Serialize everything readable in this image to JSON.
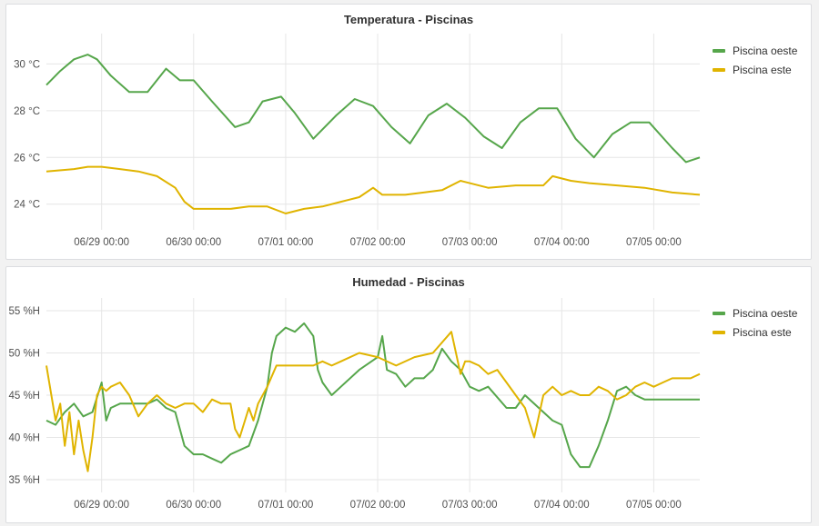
{
  "chart_data": [
    {
      "type": "line",
      "title": "Temperatura - Piscinas",
      "xlabel": "",
      "ylabel": "",
      "x_tick_labels": [
        "06/29 00:00",
        "06/30 00:00",
        "07/01 00:00",
        "07/02 00:00",
        "07/03 00:00",
        "07/04 00:00",
        "07/05 00:00"
      ],
      "y_tick_labels": [
        "24 °C",
        "26 °C",
        "28 °C",
        "30 °C"
      ],
      "y_ticks": [
        24,
        26,
        28,
        30
      ],
      "x_range": [
        -0.6,
        6.5
      ],
      "ylim": [
        22.9,
        31.3
      ],
      "grid": true,
      "legend_position": "top-right",
      "series": [
        {
          "name": "Piscina oeste",
          "color": "#56a64b",
          "x": [
            -0.6,
            -0.45,
            -0.3,
            -0.15,
            -0.05,
            0.1,
            0.3,
            0.5,
            0.7,
            0.85,
            1.0,
            1.2,
            1.45,
            1.6,
            1.75,
            1.95,
            2.1,
            2.3,
            2.55,
            2.75,
            2.95,
            3.15,
            3.35,
            3.55,
            3.75,
            3.95,
            4.15,
            4.35,
            4.55,
            4.75,
            4.95,
            5.15,
            5.35,
            5.55,
            5.75,
            5.95,
            6.2,
            6.35,
            6.5
          ],
          "y": [
            29.1,
            29.7,
            30.2,
            30.4,
            30.2,
            29.5,
            28.8,
            28.8,
            29.8,
            29.3,
            29.3,
            28.4,
            27.3,
            27.5,
            28.4,
            28.6,
            27.9,
            26.8,
            27.8,
            28.5,
            28.2,
            27.3,
            26.6,
            27.8,
            28.3,
            27.7,
            26.9,
            26.4,
            27.5,
            28.1,
            28.1,
            26.8,
            26.0,
            27.0,
            27.5,
            27.5,
            26.4,
            25.8,
            26.0
          ]
        },
        {
          "name": "Piscina este",
          "color": "#e0b400",
          "x": [
            -0.6,
            -0.3,
            -0.15,
            0.0,
            0.2,
            0.4,
            0.6,
            0.8,
            0.9,
            1.0,
            1.2,
            1.4,
            1.6,
            1.8,
            2.0,
            2.2,
            2.4,
            2.6,
            2.8,
            2.95,
            3.05,
            3.3,
            3.5,
            3.7,
            3.9,
            4.2,
            4.5,
            4.8,
            4.9,
            5.1,
            5.3,
            5.6,
            5.9,
            6.2,
            6.5
          ],
          "y": [
            25.4,
            25.5,
            25.6,
            25.6,
            25.5,
            25.4,
            25.2,
            24.7,
            24.1,
            23.8,
            23.8,
            23.8,
            23.9,
            23.9,
            23.6,
            23.8,
            23.9,
            24.1,
            24.3,
            24.7,
            24.4,
            24.4,
            24.5,
            24.6,
            25.0,
            24.7,
            24.8,
            24.8,
            25.2,
            25.0,
            24.9,
            24.8,
            24.7,
            24.5,
            24.4
          ]
        }
      ]
    },
    {
      "type": "line",
      "title": "Humedad - Piscinas",
      "xlabel": "",
      "ylabel": "",
      "x_tick_labels": [
        "06/29 00:00",
        "06/30 00:00",
        "07/01 00:00",
        "07/02 00:00",
        "07/03 00:00",
        "07/04 00:00",
        "07/05 00:00"
      ],
      "y_tick_labels": [
        "35 %H",
        "40 %H",
        "45 %H",
        "50 %H",
        "55 %H"
      ],
      "y_ticks": [
        35,
        40,
        45,
        50,
        55
      ],
      "x_range": [
        -0.6,
        6.5
      ],
      "ylim": [
        33.5,
        56.5
      ],
      "grid": true,
      "legend_position": "top-right",
      "series": [
        {
          "name": "Piscina oeste",
          "color": "#56a64b",
          "x": [
            -0.6,
            -0.5,
            -0.4,
            -0.3,
            -0.2,
            -0.1,
            0.0,
            0.05,
            0.1,
            0.2,
            0.35,
            0.5,
            0.6,
            0.7,
            0.8,
            0.9,
            1.0,
            1.1,
            1.2,
            1.3,
            1.4,
            1.5,
            1.6,
            1.7,
            1.8,
            1.85,
            1.9,
            2.0,
            2.1,
            2.2,
            2.3,
            2.35,
            2.4,
            2.5,
            2.6,
            2.8,
            3.0,
            3.05,
            3.1,
            3.2,
            3.3,
            3.4,
            3.5,
            3.6,
            3.7,
            3.8,
            3.9,
            4.0,
            4.1,
            4.2,
            4.4,
            4.5,
            4.6,
            4.8,
            4.9,
            5.0,
            5.1,
            5.2,
            5.3,
            5.4,
            5.5,
            5.6,
            5.7,
            5.8,
            5.9,
            6.0,
            6.1,
            6.2,
            6.3,
            6.4,
            6.5
          ],
          "y": [
            42,
            41.5,
            43,
            44,
            42.5,
            43,
            46.5,
            42,
            43.5,
            44,
            44,
            44,
            44.5,
            43.5,
            43,
            39,
            38,
            38,
            37.5,
            37,
            38,
            38.5,
            39,
            42,
            46,
            50,
            52,
            53,
            52.5,
            53.5,
            52,
            48,
            46.5,
            45,
            46,
            48,
            49.5,
            52,
            48,
            47.5,
            46,
            47,
            47,
            48,
            50.5,
            49,
            48,
            46,
            45.5,
            46,
            43.5,
            43.5,
            45,
            43,
            42,
            41.5,
            38,
            36.5,
            36.5,
            39,
            42,
            45.5,
            46,
            45,
            44.5,
            44.5,
            44.5,
            44.5,
            44.5,
            44.5,
            44.5
          ]
        },
        {
          "name": "Piscina este",
          "color": "#e0b400",
          "x": [
            -0.6,
            -0.5,
            -0.45,
            -0.4,
            -0.35,
            -0.3,
            -0.25,
            -0.2,
            -0.15,
            -0.1,
            -0.05,
            0.0,
            0.05,
            0.1,
            0.2,
            0.3,
            0.4,
            0.5,
            0.6,
            0.7,
            0.8,
            0.9,
            1.0,
            1.1,
            1.2,
            1.3,
            1.4,
            1.45,
            1.5,
            1.6,
            1.65,
            1.7,
            1.8,
            1.9,
            2.0,
            2.1,
            2.2,
            2.3,
            2.4,
            2.5,
            2.6,
            2.8,
            3.0,
            3.2,
            3.4,
            3.6,
            3.8,
            3.9,
            3.95,
            4.0,
            4.1,
            4.2,
            4.3,
            4.4,
            4.5,
            4.6,
            4.7,
            4.8,
            4.9,
            5.0,
            5.1,
            5.2,
            5.3,
            5.4,
            5.5,
            5.6,
            5.7,
            5.8,
            5.9,
            6.0,
            6.1,
            6.2,
            6.3,
            6.4,
            6.5
          ],
          "y": [
            48.5,
            42,
            44,
            39,
            43,
            38,
            42,
            38.5,
            36,
            40,
            45,
            46,
            45.5,
            46,
            46.5,
            45,
            42.5,
            44,
            45,
            44,
            43.5,
            44,
            44,
            43,
            44.5,
            44,
            44,
            41,
            40,
            43.5,
            42,
            44,
            46,
            48.5,
            48.5,
            48.5,
            48.5,
            48.5,
            49,
            48.5,
            49,
            50,
            49.5,
            48.5,
            49.5,
            50,
            52.5,
            47.5,
            49,
            49,
            48.5,
            47.5,
            48,
            46.5,
            45,
            43.5,
            40,
            45,
            46,
            45,
            45.5,
            45,
            45,
            46,
            45.5,
            44.5,
            45,
            46,
            46.5,
            46,
            46.5,
            47,
            47,
            47,
            47.5
          ]
        }
      ]
    }
  ]
}
